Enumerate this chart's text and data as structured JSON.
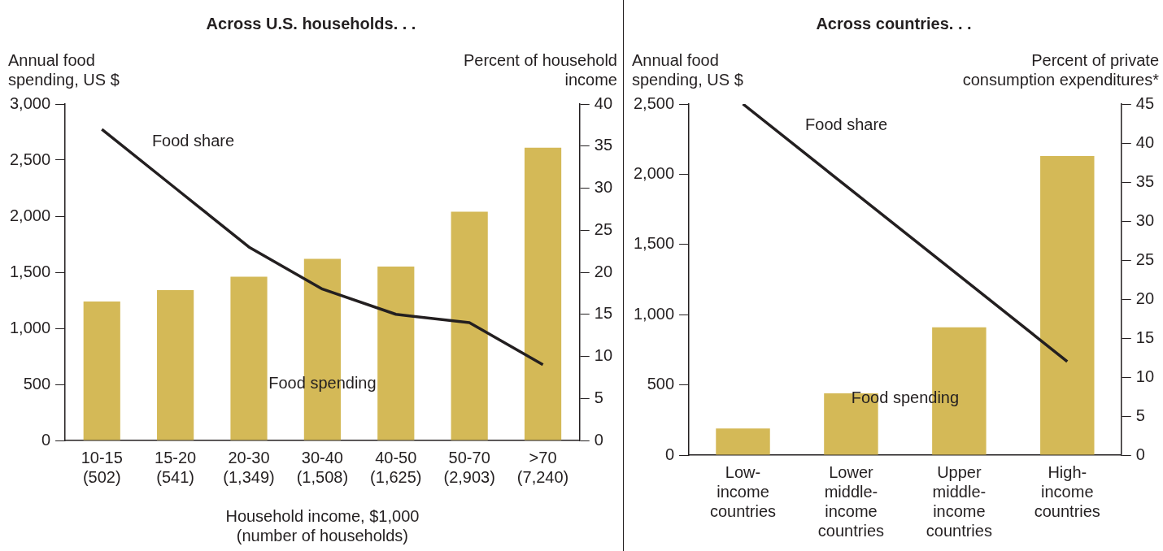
{
  "chart_data": [
    {
      "type": "bar",
      "title": "Across U.S. households. . .",
      "ylabel": "Annual food\nspending, US $",
      "y2label": "Percent of household\nincome",
      "xlabel": "Household income, $1,000\n(number of households)",
      "categories": [
        "10-15\n(502)",
        "15-20\n(541)",
        "20-30\n(1,349)",
        "30-40\n(1,508)",
        "40-50\n(1,625)",
        "50-70\n(2,903)",
        ">70\n(7,240)"
      ],
      "series": [
        {
          "name": "Food spending",
          "color": "#d4b957",
          "values": [
            1240,
            1340,
            1460,
            1620,
            1550,
            2040,
            2610
          ]
        },
        {
          "name": "Food share",
          "type": "line",
          "axis": "y2",
          "color": "#231f20",
          "values": [
            37,
            30,
            23,
            18,
            15,
            14,
            9
          ]
        }
      ],
      "ylim": [
        0,
        3000
      ],
      "yticks": [
        {
          "value": 0,
          "label": "0"
        },
        {
          "value": 500,
          "label": "500"
        },
        {
          "value": 1000,
          "label": "1,000"
        },
        {
          "value": 1500,
          "label": "1,500"
        },
        {
          "value": 2000,
          "label": "2,000"
        },
        {
          "value": 2500,
          "label": "2,500"
        },
        {
          "value": 3000,
          "label": "3,000"
        }
      ],
      "y2lim": [
        0,
        40
      ],
      "y2ticks": [
        0,
        5,
        10,
        15,
        20,
        25,
        30,
        35,
        40
      ],
      "grid": false,
      "legend": false,
      "marker": "none",
      "line_style": "solid"
    },
    {
      "type": "bar",
      "title": "Across countries. . .",
      "ylabel": "Annual food\nspending, US $",
      "y2label": "Percent of private\nconsumption expenditures*",
      "categories": [
        "Low-\nincome\ncountries",
        "Lower\nmiddle-\nincome\ncountries",
        "Upper\nmiddle-\nincome\ncountries",
        "High-\nincome\ncountries"
      ],
      "series": [
        {
          "name": "Food spending",
          "color": "#d4b957",
          "values": [
            190,
            440,
            910,
            2130
          ]
        },
        {
          "name": "Food share",
          "type": "line",
          "axis": "y2",
          "color": "#231f20",
          "values": [
            45,
            34,
            23,
            12
          ]
        }
      ],
      "ylim": [
        0,
        2500
      ],
      "yticks": [
        {
          "value": 0,
          "label": "0"
        },
        {
          "value": 500,
          "label": "500"
        },
        {
          "value": 1000,
          "label": "1,000"
        },
        {
          "value": 1500,
          "label": "1,500"
        },
        {
          "value": 2000,
          "label": "2,000"
        },
        {
          "value": 2500,
          "label": "2,500"
        }
      ],
      "y2lim": [
        0,
        45
      ],
      "y2ticks": [
        0,
        5,
        10,
        15,
        20,
        25,
        30,
        35,
        40,
        45
      ],
      "grid": false,
      "legend": false,
      "marker": "none",
      "line_style": "solid"
    }
  ]
}
